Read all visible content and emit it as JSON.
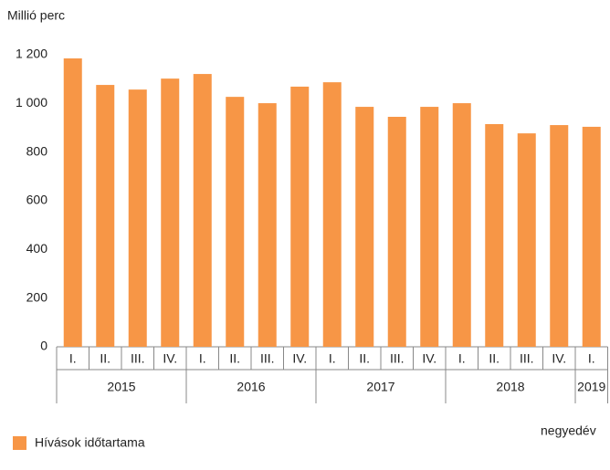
{
  "chart_data": {
    "type": "bar",
    "y_axis_label": "Millió perc",
    "x_axis_label": "negyedév",
    "categories": [
      "I.",
      "II.",
      "III.",
      "IV.",
      "I.",
      "II.",
      "III.",
      "IV.",
      "I.",
      "II.",
      "III.",
      "IV.",
      "I.",
      "II.",
      "III.",
      "IV.",
      "I."
    ],
    "year_groups": [
      "2015",
      "2016",
      "2017",
      "2018",
      "2019"
    ],
    "series": [
      {
        "name": "Hívások időtartama",
        "color": "#f79646",
        "values": [
          1185,
          1076,
          1057,
          1102,
          1121,
          1027,
          1001,
          1069,
          1087,
          986,
          945,
          986,
          1001,
          915,
          877,
          911,
          904
        ]
      }
    ],
    "ylim": [
      0,
      1200
    ],
    "yticks": [
      0,
      200,
      400,
      600,
      800,
      {
        "value": 1000,
        "label": "1 000"
      },
      {
        "value": 1200,
        "label": "1 200"
      }
    ],
    "legend": "bottom-left"
  }
}
